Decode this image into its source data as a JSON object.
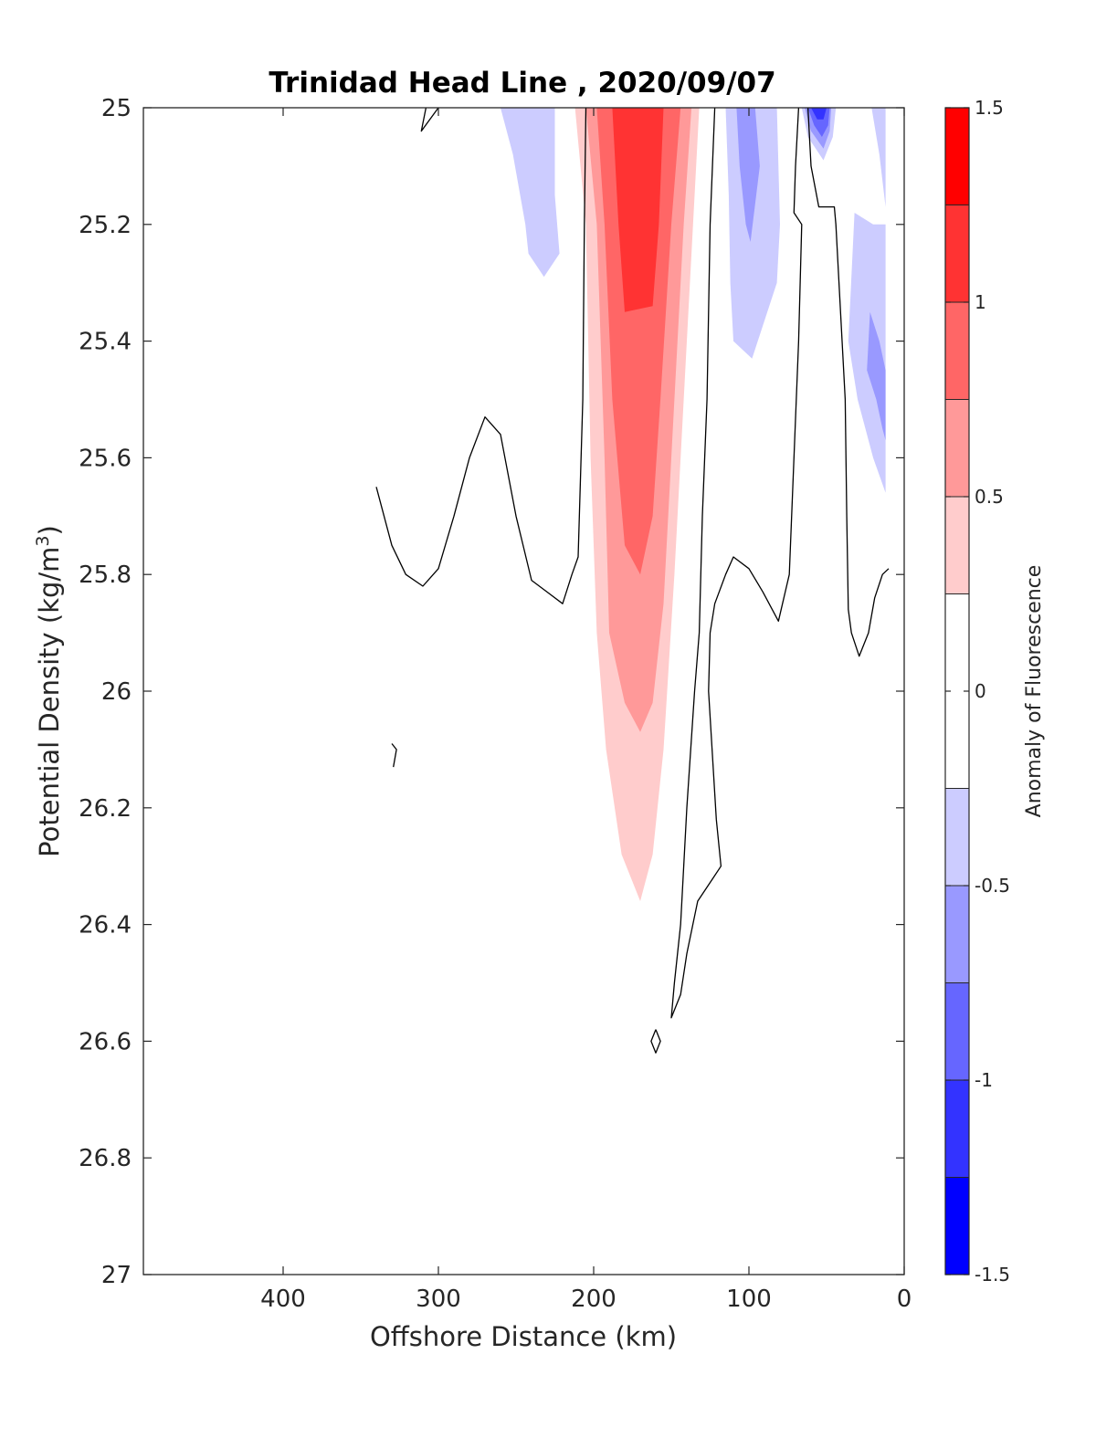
{
  "chart_data": {
    "type": "contour",
    "title": "Trinidad Head Line , 2020/09/07",
    "xlabel": "Offshore Distance (km)",
    "ylabel_main": "Potential Density (kg/m",
    "ylabel_sup": "3",
    "ylabel_close": ")",
    "xlim": [
      490,
      0
    ],
    "x_reversed": true,
    "x_ticks": [
      400,
      300,
      200,
      100,
      0
    ],
    "x_tick_labels": [
      "400",
      "300",
      "200",
      "100",
      "0"
    ],
    "ylim": [
      25,
      27
    ],
    "y_reversed": true,
    "y_ticks": [
      25,
      25.2,
      25.4,
      25.6,
      25.8,
      26,
      26.2,
      26.4,
      26.6,
      26.8,
      27
    ],
    "y_tick_labels": [
      "25",
      "25.2",
      "25.4",
      "25.6",
      "25.8",
      "26",
      "26.2",
      "26.4",
      "26.6",
      "26.8",
      "27"
    ],
    "colorbar": {
      "label": "Anomaly of Fluorescence",
      "range": [
        -1.5,
        1.5
      ],
      "ticks": [
        1.5,
        1,
        0.5,
        0,
        -0.5,
        -1,
        -1.5
      ],
      "tick_labels": [
        "1.5",
        "1",
        "0.5",
        "0",
        "-0.5",
        "-1",
        "-1.5"
      ],
      "levels": [
        {
          "from": 1.25,
          "to": 1.5,
          "color": "#ff0000"
        },
        {
          "from": 1.0,
          "to": 1.25,
          "color": "#ff3333"
        },
        {
          "from": 0.75,
          "to": 1.0,
          "color": "#ff6666"
        },
        {
          "from": 0.5,
          "to": 0.75,
          "color": "#ff9999"
        },
        {
          "from": 0.25,
          "to": 0.5,
          "color": "#ffcccc"
        },
        {
          "from": -0.25,
          "to": 0.25,
          "color": "#ffffff"
        },
        {
          "from": -0.5,
          "to": -0.25,
          "color": "#ccccff"
        },
        {
          "from": -0.75,
          "to": -0.5,
          "color": "#9999ff"
        },
        {
          "from": -1.0,
          "to": -0.75,
          "color": "#6666ff"
        },
        {
          "from": -1.25,
          "to": -1.0,
          "color": "#3333ff"
        },
        {
          "from": -1.5,
          "to": -1.25,
          "color": "#0000ff"
        }
      ]
    },
    "filled_regions": [
      {
        "color": "#ffcccc",
        "points": [
          [
            212,
            25.0
          ],
          [
            205,
            25.2
          ],
          [
            202,
            25.6
          ],
          [
            198,
            25.9
          ],
          [
            192,
            26.1
          ],
          [
            182,
            26.28
          ],
          [
            170,
            26.36
          ],
          [
            162,
            26.28
          ],
          [
            155,
            26.1
          ],
          [
            148,
            25.8
          ],
          [
            140,
            25.4
          ],
          [
            132,
            25.0
          ]
        ]
      },
      {
        "color": "#ff9999",
        "points": [
          [
            205,
            25.0
          ],
          [
            198,
            25.2
          ],
          [
            193,
            25.6
          ],
          [
            190,
            25.9
          ],
          [
            180,
            26.02
          ],
          [
            170,
            26.07
          ],
          [
            162,
            26.02
          ],
          [
            155,
            25.85
          ],
          [
            148,
            25.5
          ],
          [
            142,
            25.2
          ],
          [
            137,
            25.0
          ]
        ]
      },
      {
        "color": "#ff6666",
        "points": [
          [
            198,
            25.0
          ],
          [
            193,
            25.2
          ],
          [
            188,
            25.5
          ],
          [
            180,
            25.75
          ],
          [
            170,
            25.8
          ],
          [
            162,
            25.7
          ],
          [
            157,
            25.5
          ],
          [
            150,
            25.2
          ],
          [
            144,
            25.0
          ]
        ]
      },
      {
        "color": "#ff3333",
        "points": [
          [
            188,
            25.0
          ],
          [
            184,
            25.2
          ],
          [
            180,
            25.35
          ],
          [
            162,
            25.34
          ],
          [
            158,
            25.2
          ],
          [
            155,
            25.0
          ]
        ]
      },
      {
        "color": "#ccccff",
        "points": [
          [
            260,
            25.0
          ],
          [
            252,
            25.08
          ],
          [
            244,
            25.2
          ],
          [
            242,
            25.25
          ],
          [
            232,
            25.29
          ],
          [
            222,
            25.25
          ],
          [
            225,
            25.15
          ],
          [
            225,
            25.0
          ]
        ]
      },
      {
        "color": "#ccccff",
        "points": [
          [
            115,
            25.0
          ],
          [
            113,
            25.15
          ],
          [
            112,
            25.3
          ],
          [
            110,
            25.4
          ],
          [
            98,
            25.43
          ],
          [
            82,
            25.3
          ],
          [
            80,
            25.2
          ],
          [
            82,
            25.0
          ]
        ]
      },
      {
        "color": "#9999ff",
        "points": [
          [
            108,
            25.0
          ],
          [
            106,
            25.1
          ],
          [
            102,
            25.2
          ],
          [
            99,
            25.23
          ],
          [
            93,
            25.1
          ],
          [
            96,
            25.0
          ]
        ]
      },
      {
        "color": "#ccccff",
        "points": [
          [
            66,
            25.0
          ],
          [
            62,
            25.05
          ],
          [
            52,
            25.09
          ],
          [
            46,
            25.05
          ],
          [
            44,
            25.0
          ]
        ]
      },
      {
        "color": "#9999ff",
        "points": [
          [
            64,
            25.0
          ],
          [
            60,
            25.04
          ],
          [
            52,
            25.07
          ],
          [
            48,
            25.04
          ],
          [
            47,
            25.0
          ]
        ]
      },
      {
        "color": "#6666ff",
        "points": [
          [
            62,
            25.0
          ],
          [
            58,
            25.03
          ],
          [
            53,
            25.05
          ],
          [
            49,
            25.03
          ],
          [
            48,
            25.0
          ]
        ]
      },
      {
        "color": "#3333ff",
        "points": [
          [
            60,
            25.0
          ],
          [
            56,
            25.02
          ],
          [
            52,
            25.02
          ],
          [
            50,
            25.0
          ]
        ]
      },
      {
        "color": "#ccccff",
        "points": [
          [
            21,
            25.0
          ],
          [
            16,
            25.08
          ],
          [
            12,
            25.17
          ],
          [
            12,
            25.0
          ]
        ]
      },
      {
        "color": "#ccccff",
        "points": [
          [
            32,
            25.18
          ],
          [
            36,
            25.4
          ],
          [
            30,
            25.5
          ],
          [
            20,
            25.6
          ],
          [
            12,
            25.66
          ],
          [
            12,
            25.2
          ],
          [
            20,
            25.2
          ]
        ]
      },
      {
        "color": "#9999ff",
        "points": [
          [
            22,
            25.35
          ],
          [
            24,
            25.45
          ],
          [
            18,
            25.5
          ],
          [
            14,
            25.55
          ],
          [
            12,
            25.57
          ],
          [
            12,
            25.45
          ],
          [
            16,
            25.4
          ]
        ]
      }
    ],
    "contour_lines": [
      [
        [
          308,
          25.0
        ],
        [
          311,
          25.04
        ],
        [
          300,
          25.0
        ]
      ],
      [
        [
          340,
          25.65
        ],
        [
          330,
          25.75
        ],
        [
          321,
          25.8
        ],
        [
          310,
          25.82
        ],
        [
          300,
          25.79
        ],
        [
          290,
          25.7
        ],
        [
          280,
          25.6
        ],
        [
          270,
          25.53
        ],
        [
          260,
          25.56
        ],
        [
          250,
          25.7
        ],
        [
          240,
          25.81
        ],
        [
          230,
          25.83
        ],
        [
          220,
          25.85
        ],
        [
          214,
          25.8
        ],
        [
          210,
          25.77
        ],
        [
          207,
          25.5
        ],
        [
          206,
          25.2
        ],
        [
          205,
          25.0
        ]
      ],
      [
        [
          122,
          25.0
        ],
        [
          125,
          25.2
        ],
        [
          127,
          25.5
        ],
        [
          130,
          25.7
        ],
        [
          132,
          25.9
        ],
        [
          135,
          26.0
        ],
        [
          140,
          26.2
        ],
        [
          144,
          26.4
        ],
        [
          148,
          26.5
        ],
        [
          150,
          26.56
        ],
        [
          144,
          26.52
        ],
        [
          140,
          26.45
        ],
        [
          133,
          26.36
        ],
        [
          123,
          26.32
        ],
        [
          118,
          26.3
        ],
        [
          121,
          26.22
        ],
        [
          126,
          26.0
        ],
        [
          125,
          25.9
        ],
        [
          122,
          25.85
        ],
        [
          115,
          25.8
        ],
        [
          110,
          25.77
        ],
        [
          100,
          25.79
        ],
        [
          91,
          25.83
        ],
        [
          81,
          25.88
        ],
        [
          74,
          25.8
        ],
        [
          71,
          25.6
        ],
        [
          68,
          25.4
        ],
        [
          66,
          25.2
        ],
        [
          71,
          25.18
        ],
        [
          70,
          25.1
        ],
        [
          68,
          25.0
        ]
      ],
      [
        [
          62,
          25.0
        ],
        [
          60,
          25.1
        ],
        [
          55,
          25.17
        ],
        [
          45,
          25.17
        ],
        [
          44,
          25.2
        ],
        [
          40,
          25.4
        ],
        [
          38,
          25.5
        ],
        [
          37,
          25.7
        ],
        [
          36,
          25.86
        ],
        [
          34,
          25.9
        ],
        [
          29,
          25.94
        ],
        [
          23,
          25.9
        ],
        [
          19,
          25.84
        ],
        [
          14,
          25.8
        ],
        [
          10,
          25.79
        ]
      ],
      [
        [
          330,
          26.09
        ],
        [
          327,
          26.1
        ],
        [
          329,
          26.13
        ]
      ],
      [
        [
          160,
          26.58
        ],
        [
          163,
          26.6
        ],
        [
          160,
          26.62
        ],
        [
          157,
          26.6
        ],
        [
          160,
          26.58
        ]
      ]
    ]
  }
}
